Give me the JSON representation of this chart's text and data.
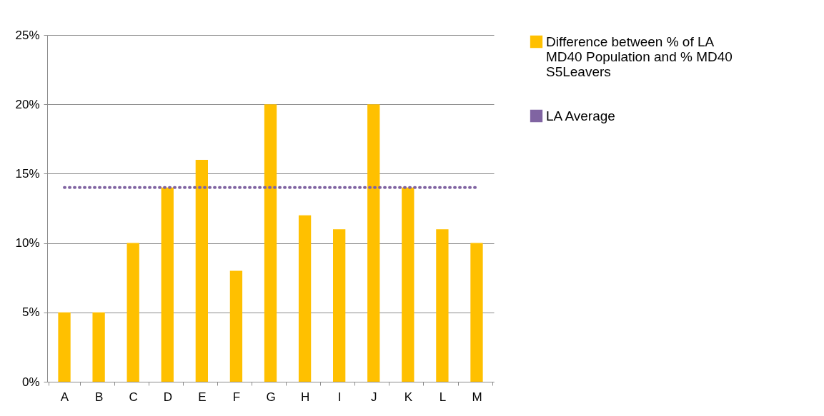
{
  "chart_data": {
    "type": "bar",
    "categories": [
      "A",
      "B",
      "C",
      "D",
      "E",
      "F",
      "G",
      "H",
      "I",
      "J",
      "K",
      "L",
      "M"
    ],
    "series": [
      {
        "name": "Difference between % of LA MD40 Population and % MD40  S5Leavers",
        "color": "#ffc000",
        "values": [
          5,
          5,
          10,
          14,
          16,
          8,
          20,
          12,
          11,
          20,
          14,
          11,
          10
        ]
      },
      {
        "name": "LA Average",
        "type": "line",
        "color": "#8064a2",
        "line_style": "dotted",
        "marker": "none",
        "values": [
          14,
          14,
          14,
          14,
          14,
          14,
          14,
          14,
          14,
          14,
          14,
          14,
          14
        ]
      }
    ],
    "ylim": [
      0,
      25
    ],
    "yticks": [
      {
        "value": 0,
        "label": "0%"
      },
      {
        "value": 5,
        "label": "5%"
      },
      {
        "value": 10,
        "label": "10%"
      },
      {
        "value": 15,
        "label": "15%"
      },
      {
        "value": 20,
        "label": "20%"
      },
      {
        "value": 25,
        "label": "25%"
      }
    ],
    "grid": "y",
    "legend": "right"
  }
}
